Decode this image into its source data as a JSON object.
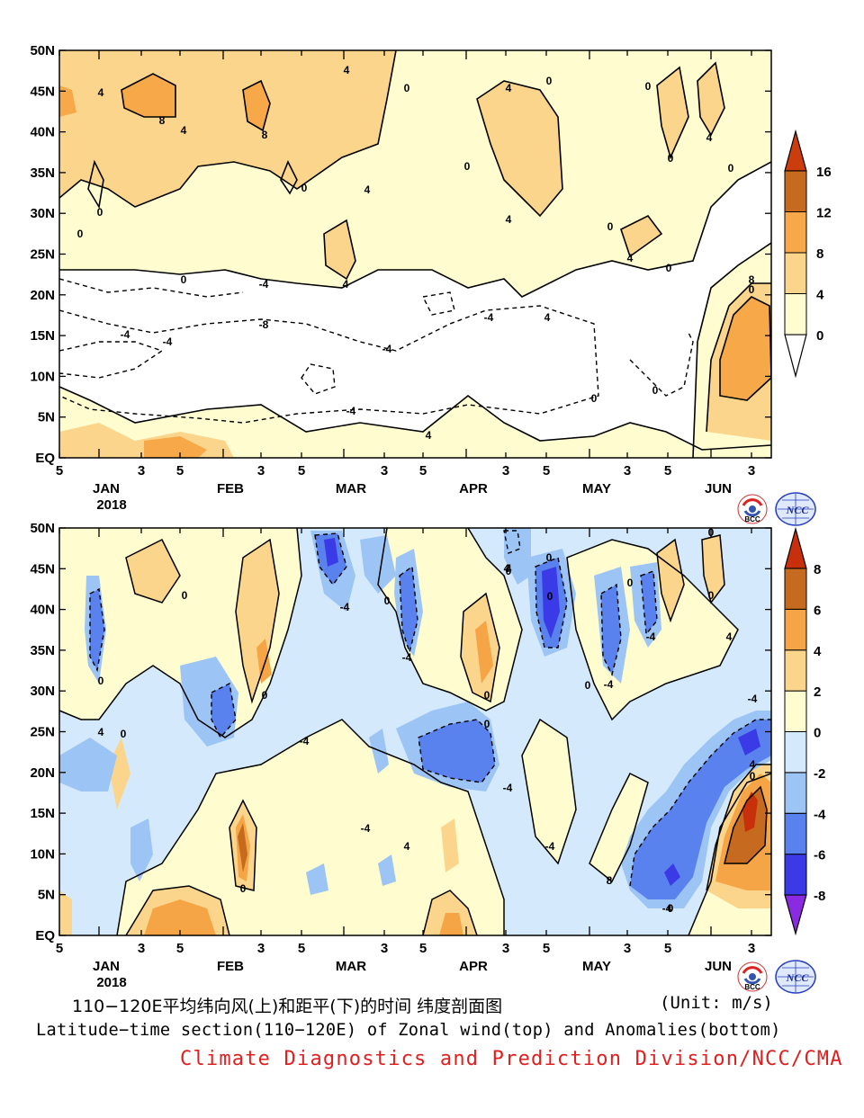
{
  "chart_data": [
    {
      "type": "heatmap",
      "name_zh": "",
      "variable": "zonal wind",
      "x_ticks": [
        "5",
        "JAN",
        "3",
        "5",
        "FEB",
        "3",
        "5",
        "MAR",
        "3",
        "5",
        "APR",
        "3",
        "5",
        "MAY",
        "3",
        "5",
        "JUN",
        "3"
      ],
      "year_label": "2018",
      "y_ticks": [
        "EQ",
        "5N",
        "10N",
        "15N",
        "20N",
        "25N",
        "30N",
        "35N",
        "40N",
        "45N",
        "50N"
      ],
      "colorbar": {
        "levels": [
          "0",
          "4",
          "8",
          "12",
          "16"
        ],
        "colors": [
          "#fffdd0",
          "#fbd58c",
          "#f7a94a",
          "#c56a1e",
          "#cc3d0e"
        ],
        "low_color": "#ffffff"
      },
      "contour_labels": [
        "4",
        "8",
        "4",
        "8",
        "4",
        "0",
        "0",
        "4",
        "0",
        "4",
        "0",
        "0",
        "0",
        "4",
        "0",
        "4",
        "0",
        "0",
        "0",
        "4",
        "0",
        "4",
        "4",
        "8",
        "0",
        "0",
        "-4",
        "-8",
        "-4",
        "-4",
        "-4",
        "-4",
        "-4",
        "0",
        "0",
        "4"
      ]
    },
    {
      "type": "heatmap",
      "variable": "zonal wind anomaly",
      "x_ticks": [
        "5",
        "JAN",
        "3",
        "5",
        "FEB",
        "3",
        "5",
        "MAR",
        "3",
        "5",
        "APR",
        "3",
        "5",
        "MAY",
        "3",
        "5",
        "JUN",
        "3"
      ],
      "year_label": "2018",
      "y_ticks": [
        "EQ",
        "5N",
        "10N",
        "15N",
        "20N",
        "25N",
        "30N",
        "35N",
        "40N",
        "45N",
        "50N"
      ],
      "colorbar": {
        "levels": [
          "-8",
          "-6",
          "-4",
          "-2",
          "0",
          "2",
          "4",
          "6",
          "8"
        ],
        "colors": [
          "#8a2be2",
          "#3a3ae6",
          "#5a82ee",
          "#9cc4f4",
          "#d4eafc",
          "#fffdd0",
          "#fbd58c",
          "#f5a545",
          "#c56a1e",
          "#c8300c"
        ]
      },
      "contour_labels": [
        "0",
        "-4",
        "0",
        "4",
        "0",
        "0",
        "0",
        "-4",
        "-4",
        "0",
        "0",
        "4",
        "-4",
        "0",
        "-4",
        "0",
        "4",
        "0",
        "-4",
        "0",
        "-4",
        "-4",
        "4",
        "-4",
        "8",
        "0",
        "0",
        "4",
        "0",
        "0",
        "0",
        "4",
        "0",
        "-4"
      ]
    }
  ],
  "captions": {
    "title_zh": "110−120E平均纬向风(上)和距平(下)的时间 纬度剖面图",
    "unit": "(Unit: m/s)",
    "title_en": "Latitude−time section(110−120E) of Zonal wind(top) and Anomalies(bottom)",
    "credit": "Climate Diagnostics and Prediction Division/NCC/CMA"
  },
  "logos": [
    "BCC",
    "NCC"
  ]
}
